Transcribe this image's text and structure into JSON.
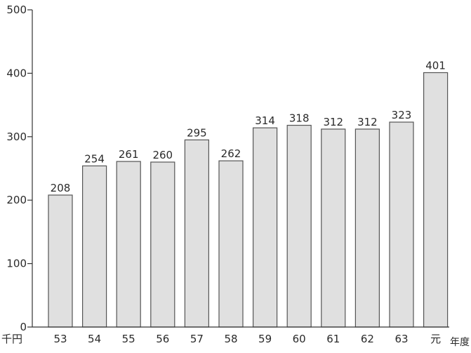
{
  "chart_data": {
    "type": "bar",
    "title": "",
    "xlabel": "年度",
    "ylabel": "千円",
    "categories": [
      "53",
      "54",
      "55",
      "56",
      "57",
      "58",
      "59",
      "60",
      "61",
      "62",
      "63",
      "元"
    ],
    "values": [
      208,
      254,
      261,
      260,
      295,
      262,
      314,
      318,
      312,
      312,
      323,
      401
    ],
    "ylim": [
      0,
      500
    ],
    "yticks": [
      0,
      100,
      200,
      300,
      400,
      500
    ],
    "ytick_labels": [
      "0",
      "100",
      "200",
      "300",
      "400",
      "500"
    ],
    "grid": false,
    "colors": {
      "bar_fill": "#e0e0e0",
      "bar_stroke": "#555555",
      "axis": "#333333"
    }
  }
}
